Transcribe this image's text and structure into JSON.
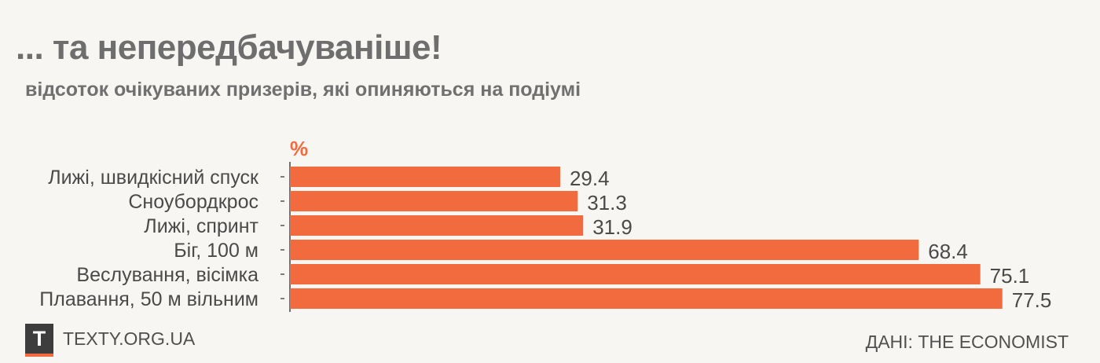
{
  "header": {
    "title": "... та непередбачуваніше!",
    "subtitle": "відсоток очікуваних призерів, які опиняються на подіумі"
  },
  "chart_data": {
    "type": "bar",
    "orientation": "horizontal",
    "unit_label": "%",
    "categories": [
      "Лижі, швидкісний спуск",
      "Сноубордкрос",
      "Лижі, спринт",
      "Біг, 100 м",
      "Веслування, вісімка",
      "Плавання, 50 м вільним"
    ],
    "values": [
      29.4,
      31.3,
      31.9,
      68.4,
      75.1,
      77.5
    ],
    "value_labels": [
      "29.4",
      "31.3",
      "31.9",
      "68.4",
      "75.1",
      "77.5"
    ],
    "xlim": [
      0,
      100
    ],
    "grid": false,
    "bar_color": "#f26b3f"
  },
  "footer": {
    "logo_letter": "T",
    "site": "TEXTY.ORG.UA",
    "source": "ДАНІ: THE ECONOMIST"
  },
  "colors": {
    "accent": "#f26b3f",
    "title": "#6e6e6e",
    "text": "#505050",
    "background": "#f7f6f2"
  }
}
